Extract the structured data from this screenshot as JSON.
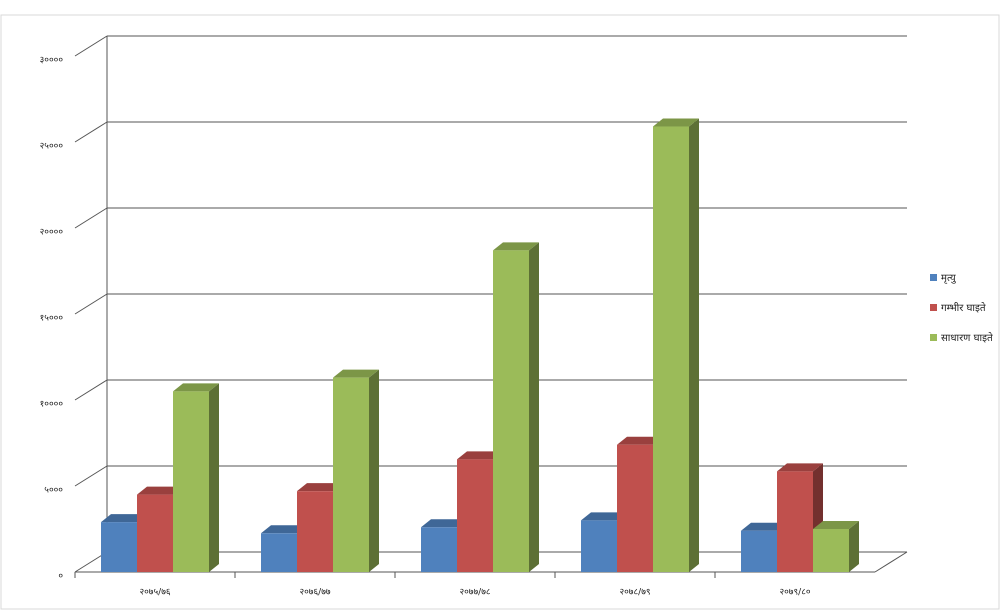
{
  "chart_data": {
    "type": "bar3d",
    "categories": [
      "२०७५/७६",
      "२०७६/७७",
      "२०७७/७८",
      "२०७८/७९",
      "२०७९/८०"
    ],
    "series": [
      {
        "name": "मृत्यु",
        "color": "#4f81bd",
        "values": [
          2900,
          2250,
          2600,
          3000,
          2400
        ]
      },
      {
        "name": "गम्भीर घाइते",
        "color": "#c0504d",
        "values": [
          4500,
          4700,
          6550,
          7400,
          5850
        ]
      },
      {
        "name": "साधारण घाइते",
        "color": "#9bbb59",
        "values": [
          10500,
          11300,
          18700,
          25900,
          2500
        ]
      }
    ],
    "ylim": [
      0,
      30000
    ],
    "yticks": [
      {
        "value": 0,
        "label": "०"
      },
      {
        "value": 5000,
        "label": "५०००"
      },
      {
        "value": 10000,
        "label": "१००००"
      },
      {
        "value": 15000,
        "label": "१५०००"
      },
      {
        "value": 20000,
        "label": "२००००"
      },
      {
        "value": 25000,
        "label": "२५०००"
      },
      {
        "value": 30000,
        "label": "३००००"
      }
    ],
    "grid": true,
    "legend": "right"
  }
}
